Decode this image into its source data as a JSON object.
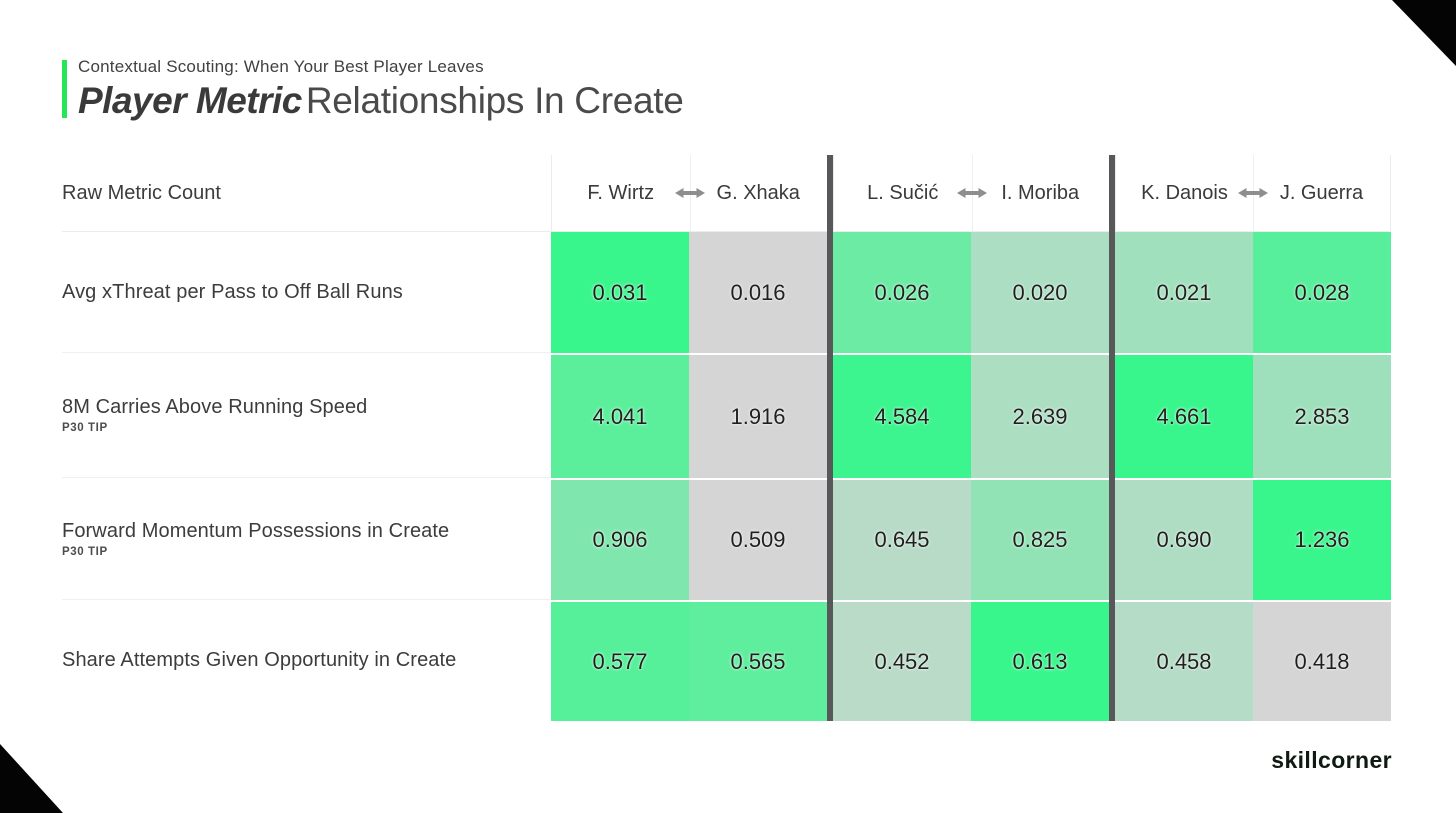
{
  "page": {
    "background": "#FFFFFF",
    "corner_color": "#040404"
  },
  "header": {
    "kicker": "Contextual Scouting: When Your Best Player Leaves",
    "title_emphasis": "Player Metric",
    "title_rest": "Relationships In Create",
    "accent_color": "#25E658"
  },
  "footer": {
    "brand": "skillcorner"
  },
  "chart_data": {
    "type": "heatmap",
    "title": "Player Metric Relationships In Create",
    "corner_label": "Raw Metric Count",
    "column_pairs": [
      {
        "left": "F. Wirtz",
        "right": "G. Xhaka"
      },
      {
        "left": "L. Sučić",
        "right": "I. Moriba"
      },
      {
        "left": "K. Danois",
        "right": "J. Guerra"
      }
    ],
    "columns": [
      "F. Wirtz",
      "G. Xhaka",
      "L. Sučić",
      "I. Moriba",
      "K. Danois",
      "J. Guerra"
    ],
    "rows": [
      {
        "label": "Avg xThreat per Pass to Off Ball Runs",
        "sublabel": "",
        "values": [
          "0.031",
          "0.016",
          "0.026",
          "0.020",
          "0.021",
          "0.028"
        ]
      },
      {
        "label": "8M Carries Above Running Speed",
        "sublabel": "P30 TIP",
        "values": [
          "4.041",
          "1.916",
          "4.584",
          "2.639",
          "4.661",
          "2.853"
        ]
      },
      {
        "label": "Forward Momentum Possessions in Create",
        "sublabel": "P30 TIP",
        "values": [
          "0.906",
          "0.509",
          "0.645",
          "0.825",
          "0.690",
          "1.236"
        ]
      },
      {
        "label": "Share Attempts Given Opportunity in Create",
        "sublabel": "",
        "values": [
          "0.577",
          "0.565",
          "0.452",
          "0.613",
          "0.458",
          "0.418"
        ]
      }
    ],
    "heat_scale": {
      "low_color": "#D5D5D5",
      "high_color": "#38F68C",
      "normalization": "per-row min to max"
    },
    "colors": {
      "pair_divider": "#58585A",
      "arrow": "#8E8E8E",
      "value_text": "#1F1F1F",
      "label_text": "#3C3C3C"
    }
  }
}
